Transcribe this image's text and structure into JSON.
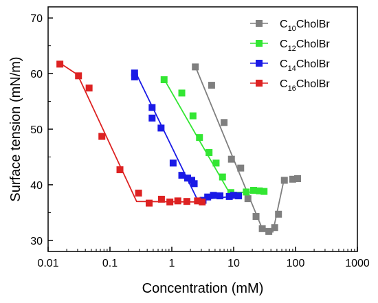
{
  "chart_data": {
    "type": "scatter",
    "xlabel": "Concentration (mM)",
    "ylabel": "Surface tension (mN/m)",
    "x_scale": "log",
    "xlim": [
      0.01,
      1000
    ],
    "ylim": [
      28,
      72
    ],
    "x_ticks": [
      0.01,
      0.1,
      1,
      10,
      100,
      1000
    ],
    "x_tick_labels": [
      "0.01",
      "0.1",
      "1",
      "10",
      "100",
      "1000"
    ],
    "y_ticks": [
      30,
      40,
      50,
      60,
      70
    ],
    "y_tick_labels": [
      "30",
      "40",
      "50",
      "60",
      "70"
    ],
    "legend_position": "top-right",
    "grid": false,
    "series": [
      {
        "name": "C10CholBr",
        "name_parts": [
          "C",
          "10",
          "CholBr"
        ],
        "color": "#7f7f7f",
        "points": [
          [
            2.4,
            61.2
          ],
          [
            4.4,
            57.9
          ],
          [
            7.0,
            51.2
          ],
          [
            9.2,
            44.6
          ],
          [
            13.0,
            43.0
          ],
          [
            17.0,
            37.5
          ],
          [
            23.0,
            34.3
          ],
          [
            29.0,
            32.1
          ],
          [
            37.0,
            31.6
          ],
          [
            46.0,
            32.3
          ],
          [
            53.0,
            34.7
          ],
          [
            66.0,
            40.8
          ],
          [
            90.0,
            41.0
          ],
          [
            108.0,
            41.1
          ]
        ],
        "fit": [
          [
            2.4,
            61.3
          ],
          [
            30.0,
            31.7
          ],
          [
            43.0,
            31.5
          ],
          [
            65.0,
            40.9
          ]
        ]
      },
      {
        "name": "C12CholBr",
        "name_parts": [
          "C",
          "12",
          "CholBr"
        ],
        "color": "#33e633",
        "points": [
          [
            0.75,
            58.9
          ],
          [
            1.45,
            56.5
          ],
          [
            2.2,
            52.4
          ],
          [
            2.8,
            48.5
          ],
          [
            4.0,
            45.8
          ],
          [
            5.2,
            43.9
          ],
          [
            6.6,
            41.4
          ],
          [
            9.0,
            38.6
          ],
          [
            16.0,
            38.7
          ],
          [
            21.0,
            39.0
          ],
          [
            26.0,
            38.9
          ],
          [
            31.0,
            38.8
          ]
        ],
        "fit": [
          [
            0.75,
            59.0
          ],
          [
            8.5,
            38.6
          ],
          [
            31.0,
            38.7
          ]
        ]
      },
      {
        "name": "C14CholBr",
        "name_parts": [
          "C",
          "14",
          "CholBr"
        ],
        "color": "#1a1ae6",
        "points": [
          [
            0.25,
            60.1
          ],
          [
            0.25,
            59.4
          ],
          [
            0.48,
            53.9
          ],
          [
            0.48,
            52.0
          ],
          [
            0.67,
            50.2
          ],
          [
            1.05,
            43.9
          ],
          [
            1.45,
            41.7
          ],
          [
            1.8,
            41.2
          ],
          [
            2.1,
            40.8
          ],
          [
            2.3,
            40.2
          ],
          [
            3.2,
            37.2
          ],
          [
            3.8,
            37.8
          ],
          [
            4.7,
            38.1
          ],
          [
            6.0,
            38.0
          ],
          [
            8.5,
            37.9
          ],
          [
            10.0,
            38.1
          ],
          [
            12.0,
            38.0
          ]
        ],
        "fit": [
          [
            0.25,
            60.6
          ],
          [
            2.6,
            37.3
          ],
          [
            12.0,
            38.0
          ]
        ]
      },
      {
        "name": "C16CholBr",
        "name_parts": [
          "C",
          "16",
          "CholBr"
        ],
        "color": "#dd2222",
        "points": [
          [
            0.0155,
            61.7
          ],
          [
            0.031,
            59.6
          ],
          [
            0.046,
            57.4
          ],
          [
            0.074,
            48.7
          ],
          [
            0.145,
            42.7
          ],
          [
            0.29,
            38.5
          ],
          [
            0.43,
            36.7
          ],
          [
            0.68,
            37.4
          ],
          [
            0.93,
            36.9
          ],
          [
            1.25,
            37.1
          ],
          [
            1.75,
            37.0
          ],
          [
            2.6,
            37.1
          ],
          [
            3.1,
            36.9
          ]
        ],
        "fit": [
          [
            0.0155,
            61.9
          ],
          [
            0.03,
            59.8
          ],
          [
            0.27,
            37.0
          ],
          [
            3.1,
            36.9
          ]
        ]
      }
    ]
  }
}
